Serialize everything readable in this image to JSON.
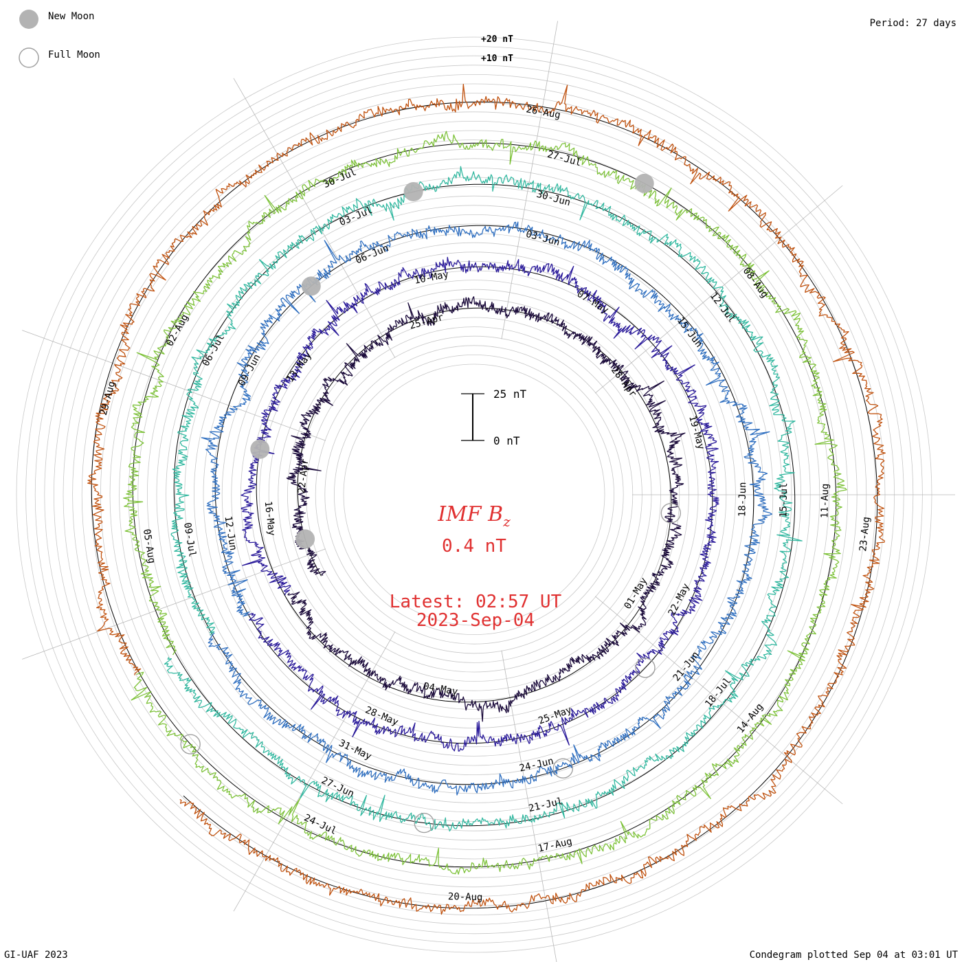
{
  "chart_data": {
    "type": "condegram-spiral",
    "title": "IMF Bz",
    "title_parts": {
      "main": "IMF B",
      "sub": "z"
    },
    "current_value": "0.4 nT",
    "latest_time": "Latest: 02:57 UT",
    "latest_date": "2023-Sep-04",
    "period": "Period: 27 days",
    "footer_left": "GI-UAF 2023",
    "footer_right": "Condegram plotted Sep 04 at 03:01 UT",
    "legend": [
      {
        "label": "New Moon",
        "kind": "new"
      },
      {
        "label": "Full Moon",
        "kind": "full"
      }
    ],
    "offset_labels": [
      "+20 nT",
      "+10 nT"
    ],
    "scale_bar": {
      "top_label": "25 nT",
      "bottom_label": "0 nT",
      "value_nT": 25
    },
    "units": "nT",
    "rotation_days": 27,
    "rotations": [
      {
        "index": 0,
        "color": "#1a0a3a",
        "date_labels": [
          "22-Apr",
          "25-Apr",
          "28-Apr",
          "01-May",
          "04-May"
        ]
      },
      {
        "index": 1,
        "color": "#2a1a9a",
        "date_labels": [
          "16-May",
          "13-May",
          "10-May",
          "07-May",
          "19-May",
          "22-May",
          "25-May",
          "28-May"
        ]
      },
      {
        "index": 2,
        "color": "#2f6fc0",
        "date_labels": [
          "12-Jun",
          "09-Jun",
          "06-Jun",
          "03-Jun",
          "15-Jun",
          "18-Jun",
          "21-Jun",
          "24-Jun",
          "31-May"
        ]
      },
      {
        "index": 3,
        "color": "#32b8a0",
        "date_labels": [
          "09-Jul",
          "06-Jul",
          "03-Jul",
          "30-Jun",
          "12-Jul",
          "15-Jul",
          "18-Jul",
          "21-Jul",
          "27-Jun"
        ]
      },
      {
        "index": 4,
        "color": "#7ec23a",
        "date_labels": [
          "05-Aug",
          "02-Aug",
          "30-Jul",
          "27-Jul",
          "08-Aug",
          "11-Aug",
          "14-Aug",
          "17-Aug",
          "24-Jul"
        ]
      },
      {
        "index": 5,
        "color": "#c0520f",
        "date_labels": [
          "29-Aug",
          "26-Aug",
          "23-Aug",
          "20-Aug"
        ]
      }
    ],
    "moon_events": [
      {
        "kind": "new",
        "date": "2023-Apr-20"
      },
      {
        "kind": "full",
        "date": "2023-May-05"
      },
      {
        "kind": "new",
        "date": "2023-May-19"
      },
      {
        "kind": "full",
        "date": "2023-Jun-04"
      },
      {
        "kind": "new",
        "date": "2023-Jun-18"
      },
      {
        "kind": "full",
        "date": "2023-Jul-03"
      },
      {
        "kind": "new",
        "date": "2023-Jul-17"
      },
      {
        "kind": "full",
        "date": "2023-Aug-01"
      },
      {
        "kind": "new",
        "date": "2023-Aug-16"
      },
      {
        "kind": "full",
        "date": "2023-Aug-31"
      }
    ],
    "bz_amplitude_range_nT": [
      -20,
      20
    ]
  }
}
